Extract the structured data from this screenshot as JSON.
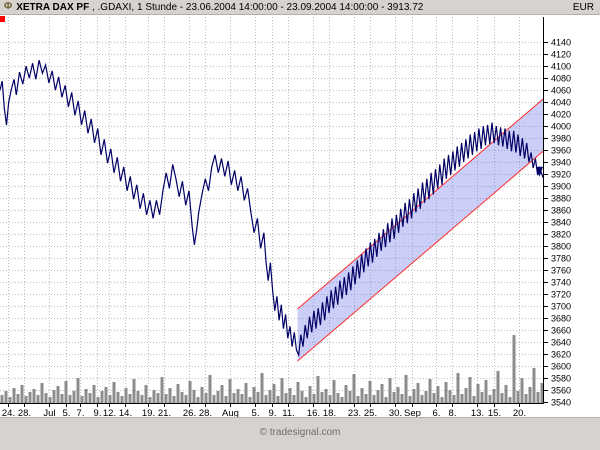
{
  "header": {
    "icon": "Φ",
    "instrument": "XETRA DAX PF",
    "details": " , .GDAXI, 1 Stunde - 23.06.2004 14:00:00 - 23.09.2004 14:00:00 - 3913.72",
    "currency": "EUR"
  },
  "footer": {
    "credit": "© tradesignal.com"
  },
  "colors": {
    "chrome": "#d6d3ce",
    "plot_bg": "#ffffff",
    "grid": "#bdbdbd",
    "price_line": "#000066",
    "channel_fill": "rgba(105,115,230,0.35)",
    "channel_line": "#ff2a2a",
    "volume": "#8c8c8c",
    "marker": "#ff0000",
    "axis_text": "#000000"
  },
  "chart_data": {
    "type": "line",
    "title": "XETRA DAX PF, .GDAXI, 1 Stunde",
    "x_range_label": "23.06.2004 14:00:00 - 23.09.2004 14:00:00",
    "last_price": 3913.72,
    "ylim": [
      3538,
      4182
    ],
    "y_tick_step": 20,
    "y_ticks": [
      4140,
      4120,
      4100,
      4080,
      4060,
      4040,
      4020,
      4000,
      3980,
      3960,
      3940,
      3920,
      3900,
      3880,
      3860,
      3840,
      3820,
      3800,
      3780,
      3760,
      3740,
      3720,
      3700,
      3680,
      3660,
      3640,
      3620,
      3600,
      3580,
      3560,
      3540
    ],
    "x_ticks": [
      {
        "label": "24.",
        "pos": 0.015
      },
      {
        "label": "28.",
        "pos": 0.045
      },
      {
        "label": "Jul",
        "pos": 0.091
      },
      {
        "label": "5.",
        "pos": 0.121
      },
      {
        "label": "7.",
        "pos": 0.148
      },
      {
        "label": "9.",
        "pos": 0.179
      },
      {
        "label": "12.",
        "pos": 0.2
      },
      {
        "label": "14.",
        "pos": 0.23
      },
      {
        "label": "19.",
        "pos": 0.272
      },
      {
        "label": "21.",
        "pos": 0.302
      },
      {
        "label": "26.",
        "pos": 0.348
      },
      {
        "label": "28.",
        "pos": 0.378
      },
      {
        "label": "Aug",
        "pos": 0.424
      },
      {
        "label": "5.",
        "pos": 0.47
      },
      {
        "label": "9.",
        "pos": 0.5
      },
      {
        "label": "11.",
        "pos": 0.53
      },
      {
        "label": "16.",
        "pos": 0.576
      },
      {
        "label": "18.",
        "pos": 0.606
      },
      {
        "label": "23.",
        "pos": 0.652
      },
      {
        "label": "25.",
        "pos": 0.682
      },
      {
        "label": "30.",
        "pos": 0.727
      },
      {
        "label": "Sep",
        "pos": 0.758
      },
      {
        "label": "6.",
        "pos": 0.803
      },
      {
        "label": "8.",
        "pos": 0.833
      },
      {
        "label": "13.",
        "pos": 0.879
      },
      {
        "label": "15.",
        "pos": 0.909
      },
      {
        "label": "20.",
        "pos": 0.955
      }
    ],
    "channel": {
      "lower": [
        [
          0.548,
          3608
        ],
        [
          1.0,
          3958
        ]
      ],
      "upper": [
        [
          0.548,
          3695
        ],
        [
          1.0,
          4045
        ]
      ]
    },
    "series": [
      [
        0.0,
        4060
      ],
      [
        0.004,
        4075
      ],
      [
        0.008,
        4030
      ],
      [
        0.012,
        4002
      ],
      [
        0.016,
        4040
      ],
      [
        0.021,
        4062
      ],
      [
        0.026,
        4078
      ],
      [
        0.03,
        4052
      ],
      [
        0.036,
        4090
      ],
      [
        0.042,
        4070
      ],
      [
        0.048,
        4100
      ],
      [
        0.054,
        4080
      ],
      [
        0.06,
        4105
      ],
      [
        0.066,
        4078
      ],
      [
        0.072,
        4110
      ],
      [
        0.078,
        4088
      ],
      [
        0.084,
        4102
      ],
      [
        0.09,
        4072
      ],
      [
        0.096,
        4092
      ],
      [
        0.102,
        4060
      ],
      [
        0.108,
        4082
      ],
      [
        0.114,
        4048
      ],
      [
        0.12,
        4068
      ],
      [
        0.126,
        4032
      ],
      [
        0.132,
        4056
      ],
      [
        0.138,
        4018
      ],
      [
        0.144,
        4042
      ],
      [
        0.15,
        4002
      ],
      [
        0.156,
        4026
      ],
      [
        0.162,
        3988
      ],
      [
        0.168,
        4012
      ],
      [
        0.174,
        3972
      ],
      [
        0.18,
        3996
      ],
      [
        0.186,
        3952
      ],
      [
        0.192,
        3978
      ],
      [
        0.198,
        3938
      ],
      [
        0.204,
        3962
      ],
      [
        0.21,
        3922
      ],
      [
        0.216,
        3948
      ],
      [
        0.222,
        3908
      ],
      [
        0.228,
        3932
      ],
      [
        0.234,
        3892
      ],
      [
        0.24,
        3916
      ],
      [
        0.246,
        3878
      ],
      [
        0.252,
        3902
      ],
      [
        0.258,
        3862
      ],
      [
        0.264,
        3888
      ],
      [
        0.27,
        3852
      ],
      [
        0.276,
        3876
      ],
      [
        0.282,
        3846
      ],
      [
        0.288,
        3876
      ],
      [
        0.294,
        3852
      ],
      [
        0.3,
        3892
      ],
      [
        0.306,
        3922
      ],
      [
        0.312,
        3896
      ],
      [
        0.318,
        3936
      ],
      [
        0.324,
        3912
      ],
      [
        0.33,
        3882
      ],
      [
        0.336,
        3908
      ],
      [
        0.342,
        3868
      ],
      [
        0.348,
        3892
      ],
      [
        0.354,
        3832
      ],
      [
        0.358,
        3802
      ],
      [
        0.362,
        3826
      ],
      [
        0.366,
        3856
      ],
      [
        0.372,
        3886
      ],
      [
        0.378,
        3912
      ],
      [
        0.384,
        3892
      ],
      [
        0.39,
        3932
      ],
      [
        0.396,
        3952
      ],
      [
        0.402,
        3922
      ],
      [
        0.408,
        3946
      ],
      [
        0.414,
        3916
      ],
      [
        0.42,
        3942
      ],
      [
        0.426,
        3902
      ],
      [
        0.432,
        3926
      ],
      [
        0.438,
        3892
      ],
      [
        0.444,
        3916
      ],
      [
        0.45,
        3876
      ],
      [
        0.456,
        3896
      ],
      [
        0.462,
        3856
      ],
      [
        0.468,
        3822
      ],
      [
        0.474,
        3846
      ],
      [
        0.48,
        3796
      ],
      [
        0.486,
        3822
      ],
      [
        0.49,
        3772
      ],
      [
        0.494,
        3742
      ],
      [
        0.498,
        3772
      ],
      [
        0.502,
        3726
      ],
      [
        0.506,
        3692
      ],
      [
        0.51,
        3716
      ],
      [
        0.514,
        3676
      ],
      [
        0.518,
        3702
      ],
      [
        0.522,
        3662
      ],
      [
        0.526,
        3686
      ],
      [
        0.53,
        3646
      ],
      [
        0.534,
        3666
      ],
      [
        0.538,
        3632
      ],
      [
        0.542,
        3656
      ],
      [
        0.546,
        3626
      ],
      [
        0.55,
        3618
      ],
      [
        0.554,
        3652
      ],
      [
        0.558,
        3632
      ],
      [
        0.562,
        3668
      ],
      [
        0.566,
        3646
      ],
      [
        0.57,
        3682
      ],
      [
        0.574,
        3656
      ],
      [
        0.578,
        3692
      ],
      [
        0.582,
        3662
      ],
      [
        0.586,
        3696
      ],
      [
        0.59,
        3668
      ],
      [
        0.594,
        3706
      ],
      [
        0.598,
        3676
      ],
      [
        0.602,
        3716
      ],
      [
        0.606,
        3688
      ],
      [
        0.61,
        3726
      ],
      [
        0.614,
        3696
      ],
      [
        0.618,
        3732
      ],
      [
        0.622,
        3702
      ],
      [
        0.626,
        3742
      ],
      [
        0.63,
        3712
      ],
      [
        0.634,
        3748
      ],
      [
        0.638,
        3718
      ],
      [
        0.642,
        3756
      ],
      [
        0.646,
        3726
      ],
      [
        0.65,
        3766
      ],
      [
        0.654,
        3736
      ],
      [
        0.658,
        3776
      ],
      [
        0.662,
        3746
      ],
      [
        0.666,
        3786
      ],
      [
        0.67,
        3756
      ],
      [
        0.674,
        3796
      ],
      [
        0.678,
        3766
      ],
      [
        0.682,
        3806
      ],
      [
        0.686,
        3772
      ],
      [
        0.69,
        3812
      ],
      [
        0.694,
        3782
      ],
      [
        0.698,
        3822
      ],
      [
        0.702,
        3792
      ],
      [
        0.706,
        3828
      ],
      [
        0.71,
        3798
      ],
      [
        0.714,
        3838
      ],
      [
        0.718,
        3806
      ],
      [
        0.722,
        3846
      ],
      [
        0.726,
        3812
      ],
      [
        0.73,
        3852
      ],
      [
        0.734,
        3822
      ],
      [
        0.738,
        3862
      ],
      [
        0.742,
        3832
      ],
      [
        0.746,
        3872
      ],
      [
        0.75,
        3838
      ],
      [
        0.754,
        3878
      ],
      [
        0.758,
        3846
      ],
      [
        0.762,
        3888
      ],
      [
        0.766,
        3856
      ],
      [
        0.77,
        3896
      ],
      [
        0.774,
        3862
      ],
      [
        0.778,
        3906
      ],
      [
        0.782,
        3872
      ],
      [
        0.786,
        3912
      ],
      [
        0.79,
        3878
      ],
      [
        0.794,
        3922
      ],
      [
        0.798,
        3886
      ],
      [
        0.802,
        3928
      ],
      [
        0.806,
        3896
      ],
      [
        0.81,
        3936
      ],
      [
        0.814,
        3902
      ],
      [
        0.818,
        3946
      ],
      [
        0.822,
        3912
      ],
      [
        0.826,
        3952
      ],
      [
        0.83,
        3918
      ],
      [
        0.834,
        3958
      ],
      [
        0.838,
        3926
      ],
      [
        0.842,
        3966
      ],
      [
        0.846,
        3932
      ],
      [
        0.85,
        3972
      ],
      [
        0.854,
        3940
      ],
      [
        0.858,
        3978
      ],
      [
        0.862,
        3946
      ],
      [
        0.866,
        3986
      ],
      [
        0.87,
        3952
      ],
      [
        0.874,
        3990
      ],
      [
        0.878,
        3958
      ],
      [
        0.882,
        3996
      ],
      [
        0.886,
        3962
      ],
      [
        0.89,
        4000
      ],
      [
        0.894,
        3968
      ],
      [
        0.898,
        4002
      ],
      [
        0.902,
        3970
      ],
      [
        0.906,
        4006
      ],
      [
        0.91,
        3972
      ],
      [
        0.914,
        4000
      ],
      [
        0.918,
        3968
      ],
      [
        0.922,
        3998
      ],
      [
        0.926,
        3966
      ],
      [
        0.93,
        3996
      ],
      [
        0.934,
        3962
      ],
      [
        0.938,
        3992
      ],
      [
        0.942,
        3958
      ],
      [
        0.946,
        3992
      ],
      [
        0.95,
        3956
      ],
      [
        0.954,
        3986
      ],
      [
        0.958,
        3950
      ],
      [
        0.962,
        3980
      ],
      [
        0.966,
        3946
      ],
      [
        0.97,
        3972
      ],
      [
        0.974,
        3940
      ],
      [
        0.978,
        3956
      ],
      [
        0.982,
        3930
      ],
      [
        0.986,
        3946
      ],
      [
        0.99,
        3918
      ],
      [
        0.994,
        3930
      ],
      [
        1.0,
        3914
      ]
    ],
    "volume": [
      8,
      12,
      6,
      15,
      9,
      18,
      7,
      11,
      14,
      8,
      20,
      10,
      6,
      13,
      17,
      9,
      22,
      8,
      12,
      25,
      7,
      14,
      10,
      18,
      6,
      12,
      16,
      8,
      21,
      11,
      7,
      15,
      9,
      24,
      12,
      8,
      18,
      6,
      13,
      10,
      26,
      9,
      15,
      7,
      19,
      11,
      8,
      22,
      13,
      6,
      16,
      10,
      28,
      8,
      12,
      18,
      7,
      24,
      10,
      14,
      9,
      20,
      6,
      16,
      11,
      30,
      8,
      13,
      19,
      7,
      25,
      10,
      15,
      8,
      21,
      12,
      6,
      17,
      9,
      27,
      11,
      14,
      8,
      23,
      10,
      6,
      18,
      12,
      29,
      7,
      15,
      9,
      22,
      8,
      13,
      19,
      6,
      25,
      11,
      16,
      9,
      28,
      7,
      14,
      20,
      8,
      12,
      24,
      10,
      17,
      6,
      21,
      13,
      8,
      30,
      9,
      15,
      26,
      7,
      19,
      11,
      23,
      8,
      14,
      32,
      10,
      18,
      6,
      68,
      12,
      25,
      9,
      16,
      35,
      11,
      20
    ]
  }
}
